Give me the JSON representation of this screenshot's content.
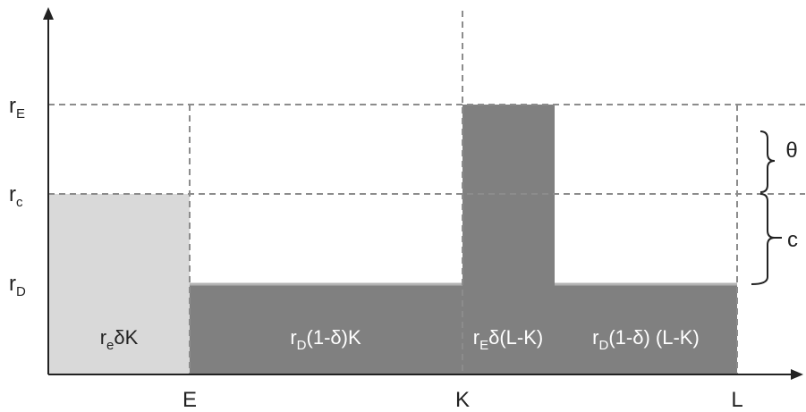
{
  "y_labels": {
    "rE": {
      "main": "r",
      "sub": "E"
    },
    "rc": {
      "main": "r",
      "sub": "c"
    },
    "rD": {
      "main": "r",
      "sub": "D"
    }
  },
  "x_labels": {
    "E": "E",
    "K": "K",
    "L": "L"
  },
  "braces": {
    "theta": "θ",
    "c": "c"
  },
  "bar_labels": {
    "b1": {
      "p1": "r",
      "sub": "e",
      "p2": "δK"
    },
    "b2": {
      "p1": "r",
      "sub": "D",
      "p2": "(1-δ)K"
    },
    "b3": {
      "p1": "r",
      "sub": "E",
      "p2": "δ(L-K)"
    },
    "b4": {
      "p1": "r",
      "sub": "D",
      "p2": "(1-δ) (L-K)"
    }
  },
  "colors": {
    "light_bar": "#d9d9d9",
    "dark_bar": "#808080",
    "axis": "#222222",
    "dashed": "#8c8c8c"
  }
}
